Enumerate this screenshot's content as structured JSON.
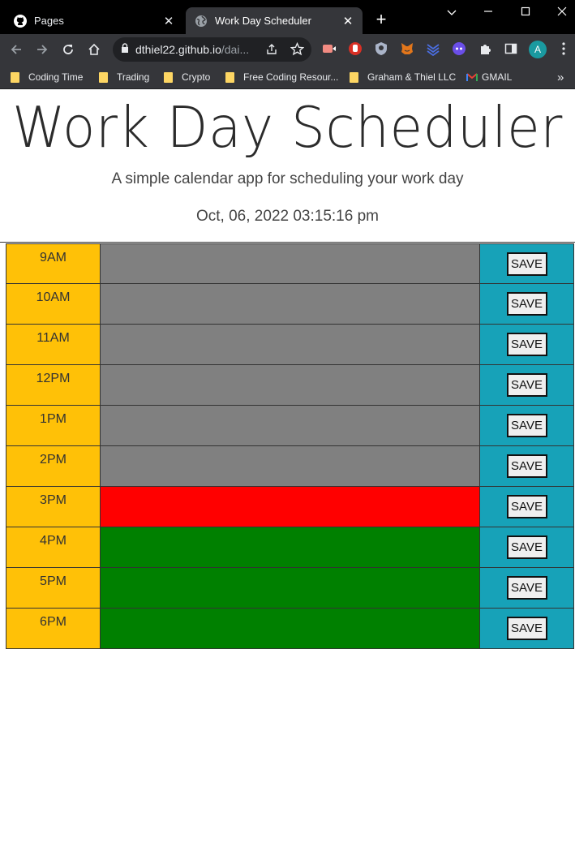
{
  "browser": {
    "tabs": [
      {
        "title": "Pages",
        "active": false,
        "icon": "github-icon"
      },
      {
        "title": "Work Day Scheduler",
        "active": true,
        "icon": "globe-icon"
      }
    ],
    "url": {
      "host": "dthiel22.github.io",
      "path": "/dai..."
    },
    "bookmarks": [
      {
        "label": "Coding Time"
      },
      {
        "label": "Trading"
      },
      {
        "label": "Crypto"
      },
      {
        "label": "Free Coding Resour..."
      },
      {
        "label": "Graham & Thiel LLC"
      },
      {
        "label": "GMAIL"
      }
    ],
    "profile_initial": "A",
    "overflow_glyph": "»"
  },
  "page": {
    "title": "Work Day Scheduler",
    "lead": "A simple calendar app for scheduling your work day",
    "current_day": "Oct, 06, 2022 03:15:16 pm",
    "save_label": "SAVE",
    "hours": [
      {
        "label": "9AM",
        "status": "past",
        "text": ""
      },
      {
        "label": "10AM",
        "status": "past",
        "text": ""
      },
      {
        "label": "11AM",
        "status": "past",
        "text": ""
      },
      {
        "label": "12PM",
        "status": "past",
        "text": ""
      },
      {
        "label": "1PM",
        "status": "past",
        "text": ""
      },
      {
        "label": "2PM",
        "status": "past",
        "text": ""
      },
      {
        "label": "3PM",
        "status": "present",
        "text": ""
      },
      {
        "label": "4PM",
        "status": "future",
        "text": ""
      },
      {
        "label": "5PM",
        "status": "future",
        "text": ""
      },
      {
        "label": "6PM",
        "status": "future",
        "text": ""
      }
    ]
  },
  "colors": {
    "past": "#808080",
    "present": "#ff0000",
    "future": "#008000",
    "hour": "#ffc107",
    "save": "#17a2b8"
  }
}
